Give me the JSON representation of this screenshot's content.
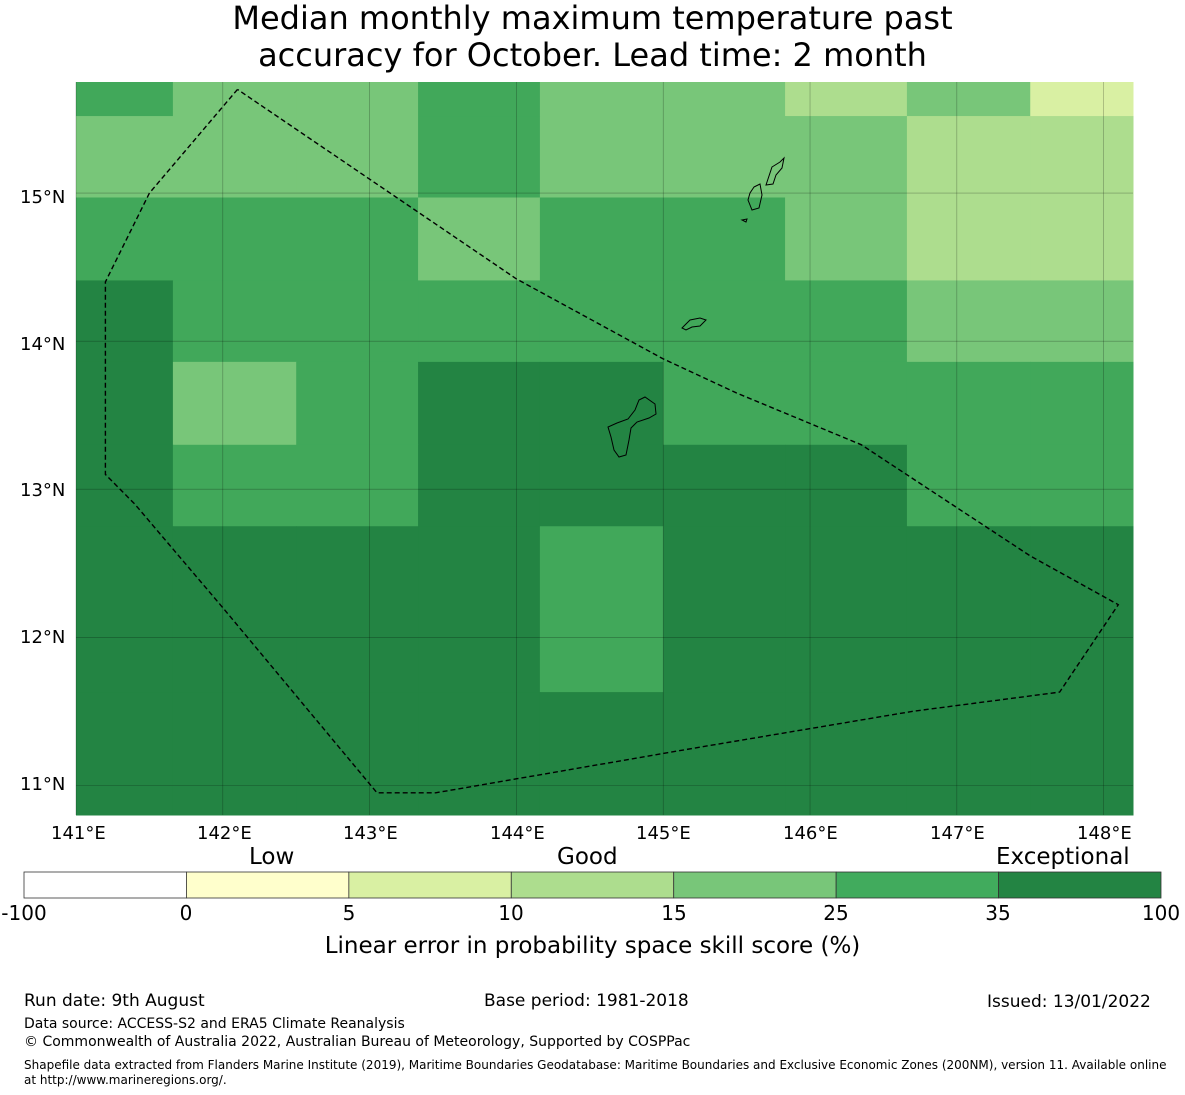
{
  "title": {
    "line1": "Median monthly maximum temperature past",
    "line2": "accuracy for October. Lead time: 2 month"
  },
  "map": {
    "lon_range": [
      141.0,
      148.2
    ],
    "lat_range": [
      10.8,
      15.75
    ],
    "lon_ticks": [
      "141°E",
      "142°E",
      "143°E",
      "144°E",
      "145°E",
      "146°E",
      "147°E",
      "148°E"
    ],
    "lat_ticks": [
      "15°N",
      "14°N",
      "13°N",
      "12°N",
      "11°N"
    ],
    "colors": {
      "c1": "#41a85a",
      "c2": "#78c679",
      "c3": "#addd8e",
      "c4": "#d9f0a3",
      "c5": "#238443"
    },
    "grid_cols_lon": [
      141.0,
      141.66,
      142.5,
      143.33,
      144.16,
      145.0,
      145.83,
      146.66,
      147.5,
      148.2
    ],
    "grid_rows_lat": [
      15.75,
      15.52,
      14.97,
      14.41,
      13.86,
      13.3,
      12.75,
      11.63,
      10.8
    ],
    "grid_rows": [
      [
        "c1",
        "c2",
        "c2",
        "c1",
        "c2",
        "c2",
        "c3",
        "c2",
        "c4"
      ],
      [
        "c2",
        "c2",
        "c2",
        "c1",
        "c2",
        "c2",
        "c2",
        "c3",
        "c3"
      ],
      [
        "c1",
        "c1",
        "c1",
        "c2",
        "c1",
        "c1",
        "c2",
        "c3",
        "c3"
      ],
      [
        "c5",
        "c1",
        "c1",
        "c1",
        "c1",
        "c1",
        "c1",
        "c2",
        "c2"
      ],
      [
        "c5",
        "c2",
        "c1",
        "c5",
        "c5",
        "c1",
        "c1",
        "c1",
        "c1"
      ],
      [
        "c5",
        "c1",
        "c1",
        "c5",
        "c5",
        "c5",
        "c5",
        "c1",
        "c1"
      ],
      [
        "c5",
        "c5",
        "c5",
        "c5",
        "c1",
        "c5",
        "c5",
        "c5",
        "c5"
      ],
      [
        "c5",
        "c5",
        "c5",
        "c5",
        "c5",
        "c5",
        "c5",
        "c5",
        "c5"
      ]
    ],
    "eez_boundary": [
      [
        142.1,
        15.7
      ],
      [
        141.5,
        15.0
      ],
      [
        141.2,
        14.4
      ],
      [
        141.2,
        13.9
      ],
      [
        141.2,
        13.1
      ],
      [
        141.4,
        12.9
      ],
      [
        142.0,
        12.2
      ],
      [
        143.05,
        10.95
      ],
      [
        143.45,
        10.95
      ],
      [
        145.2,
        11.25
      ],
      [
        146.7,
        11.5
      ],
      [
        147.7,
        11.63
      ],
      [
        148.1,
        12.22
      ],
      [
        147.5,
        12.55
      ],
      [
        146.35,
        13.3
      ],
      [
        145.5,
        13.65
      ],
      [
        145.0,
        13.88
      ],
      [
        144.0,
        14.42
      ],
      [
        142.1,
        15.7
      ]
    ]
  },
  "colorbar": {
    "categories": [
      "Low",
      "Good",
      "Exceptional"
    ],
    "ticks": [
      "-100",
      "0",
      "5",
      "10",
      "15",
      "25",
      "35",
      "100"
    ],
    "segment_colors": [
      "#ffffff",
      "#ffffcc",
      "#d9f0a3",
      "#addd8e",
      "#78c679",
      "#41ab5d",
      "#238443"
    ],
    "label": "Linear error in probability space skill score (%)"
  },
  "footer": {
    "run_date": "Run date: 9th August",
    "base_period": "Base period: 1981-2018",
    "issued": "Issued: 13/01/2022",
    "data_source": "Data source: ACCESS-S2 and ERA5 Climate Reanalysis",
    "copyright": "© Commonwealth of Australia 2022, Australian Bureau of Meteorology, Supported by COSPPac",
    "shapefile": "Shapefile data extracted from Flanders Marine Institute (2019), Maritime Boundaries Geodatabase: Maritime Boundaries and Exclusive Economic Zones (200NM), version 11. Available online at http://www.marineregions.org/."
  }
}
